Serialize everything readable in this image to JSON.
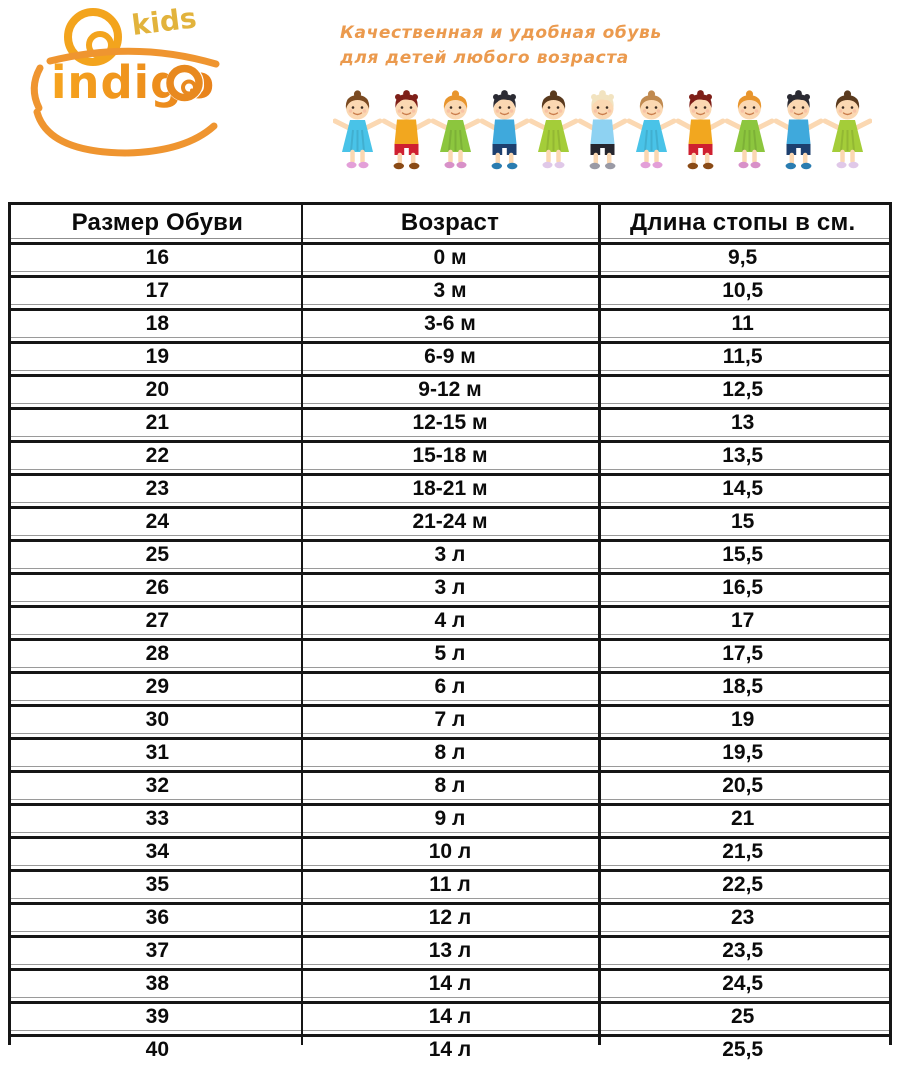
{
  "brand": {
    "logo_word": "indigo",
    "logo_kids": "kids",
    "tagline_line1": "Качественная и удобная обувь",
    "tagline_line2": "для детей любого возраста",
    "logo_orange": "#ef9530",
    "logo_gold": "#e2b33c",
    "tagline_color": "#eb9a4e"
  },
  "illustration": {
    "name": "children-holding-hands",
    "skin_color": "#fbd8b2",
    "kids": [
      {
        "type": "girl",
        "hair": "#7a4a21",
        "dress": "#49c3e8",
        "shoes": "#e39fd8"
      },
      {
        "type": "boy",
        "hair": "#7e1f18",
        "top": "#f2a71f",
        "bottom": "#cf2030",
        "shoes": "#8a4a15"
      },
      {
        "type": "girl",
        "hair": "#e8952d",
        "dress": "#8cc63e",
        "shoes": "#d890c8"
      },
      {
        "type": "boy",
        "hair": "#2b2b33",
        "top": "#3fa9dc",
        "bottom": "#1d3f6e",
        "shoes": "#2a7cb0"
      },
      {
        "type": "girl",
        "hair": "#5a3a1e",
        "dress": "#a4cd39",
        "shoes": "#e0c8e8"
      },
      {
        "type": "boy",
        "hair": "#f2e3c0",
        "top": "#8ed2f2",
        "bottom": "#26262e",
        "shoes": "#9a9aa5"
      },
      {
        "type": "girl",
        "hair": "#c08a50",
        "dress": "#49c3e8",
        "shoes": "#e39fd8"
      },
      {
        "type": "boy",
        "hair": "#7e1f18",
        "top": "#f2a71f",
        "bottom": "#cf2030",
        "shoes": "#8a4a15"
      },
      {
        "type": "girl",
        "hair": "#e8952d",
        "dress": "#8cc63e",
        "shoes": "#d890c8"
      },
      {
        "type": "boy",
        "hair": "#2b2b33",
        "top": "#3fa9dc",
        "bottom": "#1d3f6e",
        "shoes": "#2a7cb0"
      },
      {
        "type": "girl",
        "hair": "#5a3a1e",
        "dress": "#a4cd39",
        "shoes": "#e0c8e8"
      }
    ]
  },
  "table": {
    "headers": [
      "Размер Обуви",
      "Возраст",
      "Длина стопы в см."
    ],
    "rows": [
      [
        "16",
        "0 м",
        "9,5"
      ],
      [
        "17",
        "3 м",
        "10,5"
      ],
      [
        "18",
        "3-6 м",
        "11"
      ],
      [
        "19",
        "6-9 м",
        "11,5"
      ],
      [
        "20",
        "9-12 м",
        "12,5"
      ],
      [
        "21",
        "12-15 м",
        "13"
      ],
      [
        "22",
        "15-18 м",
        "13,5"
      ],
      [
        "23",
        "18-21 м",
        "14,5"
      ],
      [
        "24",
        "21-24 м",
        "15"
      ],
      [
        "25",
        "3 л",
        "15,5"
      ],
      [
        "26",
        "3 л",
        "16,5"
      ],
      [
        "27",
        "4 л",
        "17"
      ],
      [
        "28",
        "5 л",
        "17,5"
      ],
      [
        "29",
        "6 л",
        "18,5"
      ],
      [
        "30",
        "7 л",
        "19"
      ],
      [
        "31",
        "8 л",
        "19,5"
      ],
      [
        "32",
        "8 л",
        "20,5"
      ],
      [
        "33",
        "9 л",
        "21"
      ],
      [
        "34",
        "10 л",
        "21,5"
      ],
      [
        "35",
        "11 л",
        "22,5"
      ],
      [
        "36",
        "12 л",
        "23"
      ],
      [
        "37",
        "13 л",
        "23,5"
      ],
      [
        "38",
        "14 л",
        "24,5"
      ],
      [
        "39",
        "14 л",
        "25"
      ],
      [
        "40",
        "14 л",
        "25,5"
      ]
    ]
  }
}
